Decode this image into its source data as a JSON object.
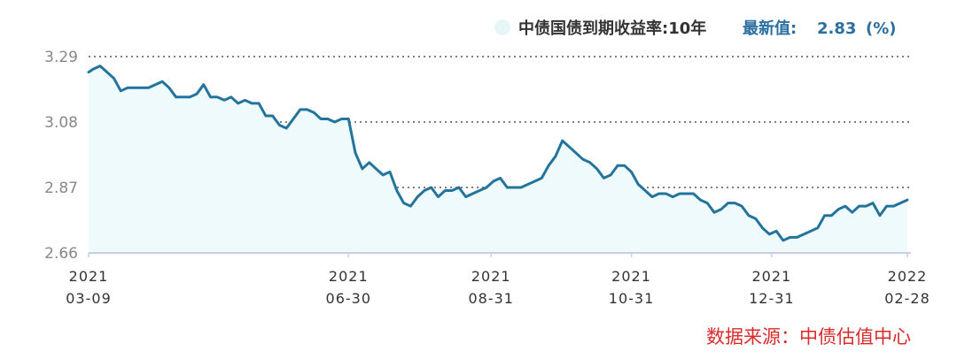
{
  "chart_data": {
    "type": "area",
    "legend": {
      "series_label": "中债国债到期收益率:10年",
      "latest_label": "最新值:",
      "latest_value": "2.83",
      "unit": "(%)"
    },
    "source": "数据来源：中债估值中心",
    "ylim": [
      2.66,
      3.29
    ],
    "yticks": [
      "3.29",
      "3.08",
      "2.87",
      "2.66"
    ],
    "grid": "horizontal-dotted",
    "xlim": [
      "2021-03-09",
      "2022-02-28"
    ],
    "xticks": [
      {
        "date": "2021-03-09",
        "year": "2021",
        "md": "03-09"
      },
      {
        "date": "2021-06-30",
        "year": "2021",
        "md": "06-30"
      },
      {
        "date": "2021-08-31",
        "year": "2021",
        "md": "08-31"
      },
      {
        "date": "2021-10-31",
        "year": "2021",
        "md": "10-31"
      },
      {
        "date": "2021-12-31",
        "year": "2021",
        "md": "12-31"
      },
      {
        "date": "2022-02-28",
        "year": "2022",
        "md": "02-28"
      }
    ],
    "colors": {
      "line": "#23749c",
      "fill": "#eefafb",
      "legend_dot": "#e6f5f8",
      "grid": "#555555",
      "axis": "#c5d0e6",
      "source": "#d92b2b"
    },
    "series": [
      {
        "x": [
          "2021-03-09",
          "2021-03-11",
          "2021-03-14",
          "2021-03-17",
          "2021-03-20",
          "2021-03-23",
          "2021-03-26",
          "2021-03-29",
          "2021-04-01",
          "2021-04-04",
          "2021-04-07",
          "2021-04-10",
          "2021-04-13",
          "2021-04-16",
          "2021-04-19",
          "2021-04-22",
          "2021-04-25",
          "2021-04-28",
          "2021-05-01",
          "2021-05-04",
          "2021-05-07",
          "2021-05-10",
          "2021-05-13",
          "2021-05-16",
          "2021-05-19",
          "2021-05-22",
          "2021-05-25",
          "2021-05-28",
          "2021-05-31",
          "2021-06-03",
          "2021-06-06",
          "2021-06-09",
          "2021-06-12",
          "2021-06-15",
          "2021-06-18",
          "2021-06-21",
          "2021-06-24",
          "2021-06-27",
          "2021-06-30",
          "2021-07-03",
          "2021-07-06",
          "2021-07-09",
          "2021-07-12",
          "2021-07-15",
          "2021-07-18",
          "2021-07-21",
          "2021-07-24",
          "2021-07-27",
          "2021-07-30",
          "2021-08-02",
          "2021-08-05",
          "2021-08-08",
          "2021-08-11",
          "2021-08-14",
          "2021-08-17",
          "2021-08-20",
          "2021-08-23",
          "2021-08-26",
          "2021-08-29",
          "2021-09-01",
          "2021-09-04",
          "2021-09-07",
          "2021-09-10",
          "2021-09-13",
          "2021-09-16",
          "2021-09-19",
          "2021-09-22",
          "2021-09-25",
          "2021-09-28",
          "2021-10-01",
          "2021-10-04",
          "2021-10-07",
          "2021-10-10",
          "2021-10-13",
          "2021-10-16",
          "2021-10-19",
          "2021-10-22",
          "2021-10-25",
          "2021-10-28",
          "2021-10-31",
          "2021-11-03",
          "2021-11-06",
          "2021-11-09",
          "2021-11-12",
          "2021-11-15",
          "2021-11-18",
          "2021-11-21",
          "2021-11-24",
          "2021-11-27",
          "2021-11-30",
          "2021-12-03",
          "2021-12-06",
          "2021-12-09",
          "2021-12-12",
          "2021-12-15",
          "2021-12-18",
          "2021-12-21",
          "2021-12-24",
          "2021-12-27",
          "2021-12-30",
          "2022-01-02",
          "2022-01-05",
          "2022-01-08",
          "2022-01-11",
          "2022-01-14",
          "2022-01-17",
          "2022-01-20",
          "2022-01-23",
          "2022-01-26",
          "2022-01-29",
          "2022-02-01",
          "2022-02-04",
          "2022-02-07",
          "2022-02-10",
          "2022-02-13",
          "2022-02-16",
          "2022-02-19",
          "2022-02-22",
          "2022-02-25",
          "2022-02-28"
        ],
        "y": [
          3.24,
          3.25,
          3.26,
          3.24,
          3.22,
          3.18,
          3.19,
          3.19,
          3.19,
          3.19,
          3.2,
          3.21,
          3.19,
          3.16,
          3.16,
          3.16,
          3.17,
          3.2,
          3.16,
          3.16,
          3.15,
          3.16,
          3.14,
          3.15,
          3.14,
          3.14,
          3.1,
          3.1,
          3.07,
          3.06,
          3.09,
          3.12,
          3.12,
          3.11,
          3.09,
          3.09,
          3.08,
          3.09,
          3.09,
          2.98,
          2.93,
          2.95,
          2.93,
          2.91,
          2.92,
          2.86,
          2.82,
          2.81,
          2.84,
          2.86,
          2.87,
          2.84,
          2.86,
          2.86,
          2.87,
          2.84,
          2.85,
          2.86,
          2.87,
          2.89,
          2.9,
          2.87,
          2.87,
          2.87,
          2.88,
          2.89,
          2.9,
          2.94,
          2.97,
          3.02,
          3.0,
          2.98,
          2.96,
          2.95,
          2.93,
          2.9,
          2.91,
          2.94,
          2.94,
          2.92,
          2.88,
          2.86,
          2.84,
          2.85,
          2.85,
          2.84,
          2.85,
          2.85,
          2.85,
          2.83,
          2.82,
          2.79,
          2.8,
          2.82,
          2.82,
          2.81,
          2.78,
          2.77,
          2.74,
          2.72,
          2.73,
          2.7,
          2.71,
          2.71,
          2.72,
          2.73,
          2.74,
          2.78,
          2.78,
          2.8,
          2.81,
          2.79,
          2.81,
          2.81,
          2.82,
          2.78,
          2.81,
          2.81,
          2.82,
          2.83
        ]
      }
    ]
  }
}
